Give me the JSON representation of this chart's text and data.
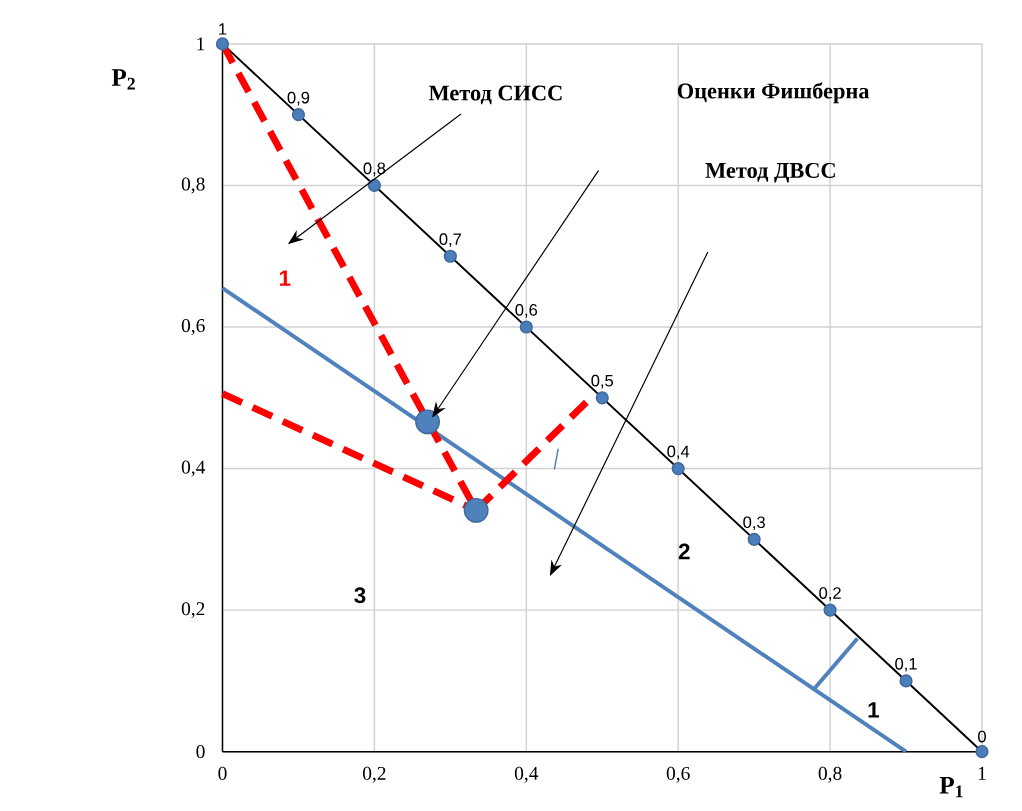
{
  "chart_data": {
    "type": "line",
    "xlabel": "P$_{1}$",
    "ylabel": "P$_{2}$",
    "xlim": [
      0,
      1
    ],
    "ylim": [
      0,
      1
    ],
    "xticks": [
      0,
      {
        "value": 0.2,
        "label": "0,2"
      },
      {
        "value": 0.4,
        "label": "0,4"
      },
      {
        "value": 0.6,
        "label": "0,6"
      },
      {
        "value": 0.8,
        "label": "0,8"
      },
      1
    ],
    "yticks": [
      0,
      {
        "value": 0.2,
        "label": "0,2"
      },
      {
        "value": 0.4,
        "label": "0,4"
      },
      {
        "value": 0.6,
        "label": "0,6"
      },
      {
        "value": 0.8,
        "label": "0,8"
      },
      1
    ],
    "grid": true,
    "series": [
      {
        "color": "#000000",
        "marker": "none",
        "line_style": "solid",
        "x": [
          0,
          1
        ],
        "values": [
          1,
          0
        ]
      },
      {
        "type": "scatter",
        "color": "#4a7ebb",
        "marker": "circle",
        "x": [
          0,
          0.1,
          0.2,
          0.3,
          0.4,
          0.5,
          0.6,
          0.7,
          0.8,
          0.9,
          1
        ],
        "values": [
          1,
          0.9,
          0.8,
          0.7,
          0.6,
          0.5,
          0.4,
          0.3,
          0.2,
          0.1,
          0
        ],
        "value_labels": [
          "1",
          "0,9",
          "0,8",
          "0,7",
          "0,6",
          "0,5",
          "0,4",
          "0,3",
          "0,2",
          "0,1",
          "0"
        ]
      },
      {
        "color": "#4f81bd",
        "marker": "none",
        "line_style": "solid",
        "x": [
          0,
          0.9
        ],
        "values": [
          0.655,
          0
        ]
      },
      {
        "color": "#4f81bd",
        "marker": "none",
        "line_style": "solid",
        "x": [
          0.78,
          0.836
        ],
        "values": [
          0.09,
          0.16
        ]
      },
      {
        "color": "#4f81bd",
        "marker": "none",
        "line_style": "solid",
        "x": [
          0.437,
          0.442
        ],
        "values": [
          0.399,
          0.428
        ]
      },
      {
        "color": "#ff0000",
        "marker": "none",
        "line_style": "dashed",
        "x": [
          0,
          0.334,
          0.485
        ],
        "values": [
          1,
          0.341,
          0.5
        ]
      },
      {
        "color": "#ff0000",
        "marker": "none",
        "line_style": "dashed",
        "x": [
          0,
          0.334
        ],
        "values": [
          0.506,
          0.341
        ]
      },
      {
        "type": "scatter",
        "color": "#4f81bd",
        "marker": "circle",
        "x": [
          0.27,
          0.334
        ],
        "values": [
          0.466,
          0.341
        ]
      }
    ],
    "annotations": [
      "Метод СИСС",
      "Оценки Фишберна",
      "Метод ДВСС",
      "1",
      "2",
      "3",
      "1"
    ]
  }
}
